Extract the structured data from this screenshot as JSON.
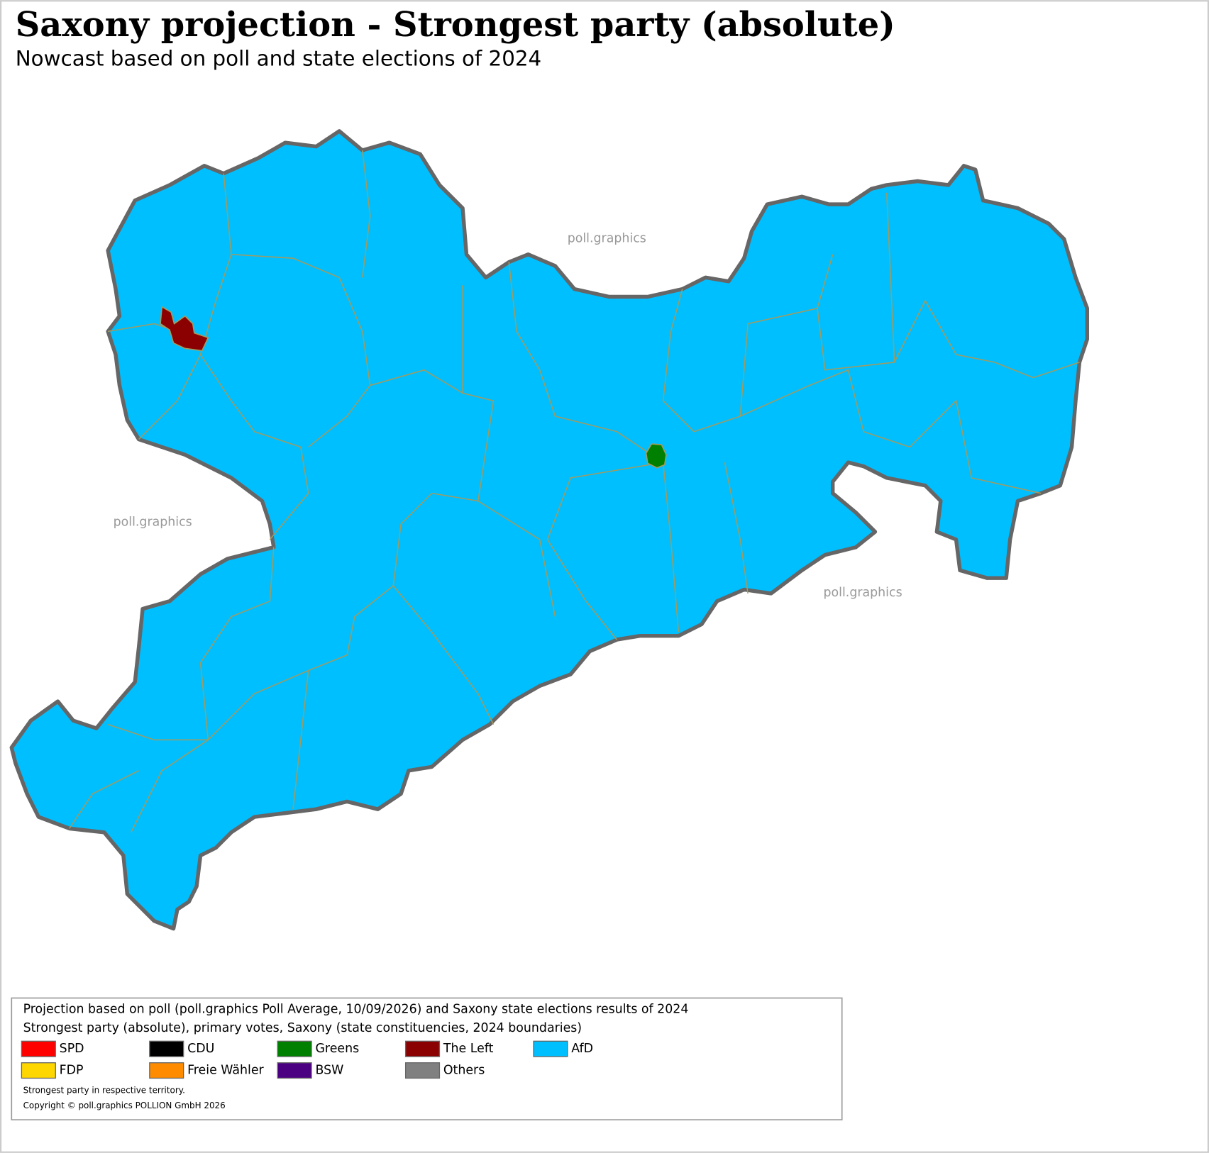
{
  "title": "Saxony projection - Strongest party (absolute)",
  "subtitle": "Nowcast based on poll and state elections of 2024",
  "watermarks": [
    "poll.graphics",
    "poll.graphics",
    "poll.graphics"
  ],
  "legend": {
    "lines": [
      "Projection based on poll (poll.graphics Poll Average, 10/09/2026) and Saxony state elections results of 2024",
      "Strongest party (absolute), primary votes, Saxony (state constituencies, 2024 boundaries)"
    ],
    "items": [
      {
        "label": "SPD",
        "color": "#ff0000"
      },
      {
        "label": "CDU",
        "color": "#000000"
      },
      {
        "label": "Greens",
        "color": "#008000"
      },
      {
        "label": "The Left",
        "color": "#8b0000"
      },
      {
        "label": "AfD",
        "color": "#00bfff"
      },
      {
        "label": "FDP",
        "color": "#ffd700"
      },
      {
        "label": "Freie Wähler",
        "color": "#ff8c00"
      },
      {
        "label": "BSW",
        "color": "#4b0082"
      },
      {
        "label": "Others",
        "color": "#808080"
      }
    ],
    "notes": [
      "Strongest party in respective territory.",
      "Copyright © poll.graphics POLLION GmbH 2026"
    ]
  }
}
